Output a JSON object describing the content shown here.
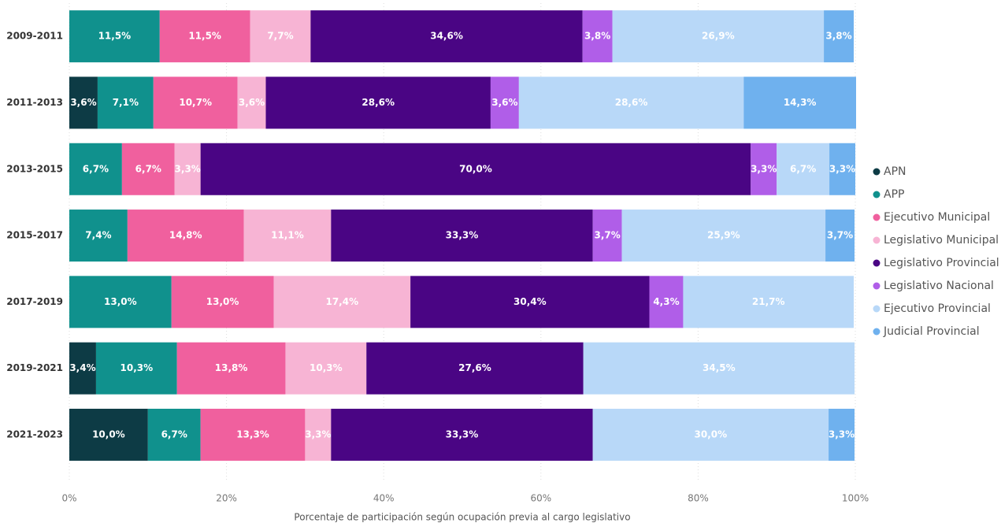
{
  "chart_data": {
    "type": "stacked_barh",
    "categories": [
      "2009-2011",
      "2011-2013",
      "2013-2015",
      "2015-2017",
      "2017-2019",
      "2019-2021",
      "2021-2023"
    ],
    "xlabel": "Porcentaje de participación según ocupación previa al cargo legislativo",
    "xlim": [
      0,
      100
    ],
    "xticks": [
      {
        "value": 0,
        "label": "0%"
      },
      {
        "value": 20,
        "label": "20%"
      },
      {
        "value": 40,
        "label": "40%"
      },
      {
        "value": 60,
        "label": "60%"
      },
      {
        "value": 80,
        "label": "80%"
      },
      {
        "value": 100,
        "label": "100%"
      }
    ],
    "grid": true,
    "legend": "right",
    "series": [
      {
        "name": "APN",
        "color": "#0d3b45",
        "values": [
          null,
          3.6,
          null,
          null,
          null,
          3.4,
          10.0
        ],
        "value_labels": [
          null,
          "3,6%",
          null,
          null,
          null,
          "3,4%",
          "10,0%"
        ]
      },
      {
        "name": "APP",
        "color": "#10918d",
        "values": [
          11.5,
          7.1,
          6.7,
          7.4,
          13.0,
          10.3,
          6.7
        ],
        "value_labels": [
          "11,5%",
          "7,1%",
          "6,7%",
          "7,4%",
          "13,0%",
          "10,3%",
          "6,7%"
        ]
      },
      {
        "name": "Ejecutivo Municipal",
        "color": "#f0609e",
        "values": [
          11.5,
          10.7,
          6.7,
          14.8,
          13.0,
          13.8,
          13.3
        ],
        "value_labels": [
          "11,5%",
          "10,7%",
          "6,7%",
          "14,8%",
          "13,0%",
          "13,8%",
          "13,3%"
        ]
      },
      {
        "name": "Legislativo Municipal",
        "color": "#f7b4d4",
        "values": [
          7.7,
          3.6,
          3.3,
          11.1,
          17.4,
          10.3,
          3.3
        ],
        "value_labels": [
          "7,7%",
          "3,6%",
          "3,3%",
          "11,1%",
          "17,4%",
          "10,3%",
          "3,3%"
        ]
      },
      {
        "name": "Legislativo Provincial",
        "color": "#4a0584",
        "values": [
          34.6,
          28.6,
          70.0,
          33.3,
          30.4,
          27.6,
          33.3
        ],
        "value_labels": [
          "34,6%",
          "28,6%",
          "70,0%",
          "33,3%",
          "30,4%",
          "27,6%",
          "33,3%"
        ]
      },
      {
        "name": "Legislativo Nacional",
        "color": "#b05ee8",
        "values": [
          3.8,
          3.6,
          3.3,
          3.7,
          4.3,
          null,
          null
        ],
        "value_labels": [
          "3,8%",
          "3,6%",
          "3,3%",
          "3,7%",
          "4,3%",
          null,
          null
        ]
      },
      {
        "name": "Ejecutivo Provincial",
        "color": "#b8d8f8",
        "values": [
          26.9,
          28.6,
          6.7,
          25.9,
          21.7,
          34.5,
          30.0
        ],
        "value_labels": [
          "26,9%",
          "28,6%",
          "6,7%",
          "25,9%",
          "21,7%",
          "34,5%",
          "30,0%"
        ]
      },
      {
        "name": "Judicial Provincial",
        "color": "#6fb1ee",
        "values": [
          3.8,
          14.3,
          3.3,
          3.7,
          null,
          null,
          3.3
        ],
        "value_labels": [
          "3,8%",
          "14,3%",
          "3,3%",
          "3,7%",
          null,
          null,
          "3,3%"
        ]
      }
    ]
  }
}
